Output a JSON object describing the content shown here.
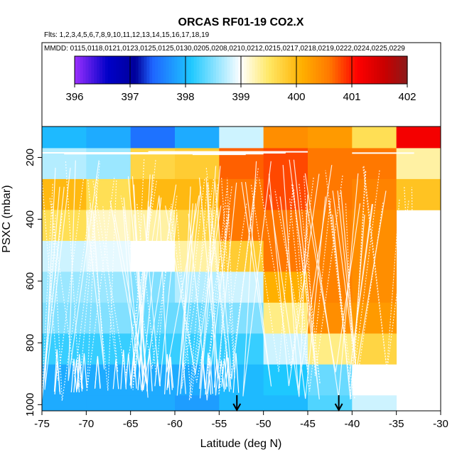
{
  "chart_data": {
    "type": "heatmap",
    "title": "ORCAS RF01-19 CO2.X",
    "flights_label": "Flts: 1,2,3,4,5,6,7,8,9,10,11,12,13,14,15,16,17,18,19",
    "mmdd_label": "MMDD: 0115,0118,0121,0123,0125,0125,0130,0205,0208,0210,0212,0215,0217,0218,0219,0222,0224,0225,0229",
    "xlabel": "Latitude (deg N)",
    "ylabel": "PSXC (mbar)",
    "xlim": [
      -75,
      -30
    ],
    "ylim": [
      1020,
      100
    ],
    "x_ticks": [
      -75,
      -70,
      -65,
      -60,
      -55,
      -50,
      -45,
      -40,
      -35,
      -30
    ],
    "y_ticks": [
      200,
      400,
      600,
      800,
      1000
    ],
    "colorbar": {
      "min": 396,
      "max": 402,
      "ticks": [
        396,
        397,
        398,
        399,
        400,
        401,
        402
      ],
      "stops": [
        {
          "v": 396.0,
          "c": "#9b30ff"
        },
        {
          "v": 396.6,
          "c": "#0000c8"
        },
        {
          "v": 397.1,
          "c": "#00009a"
        },
        {
          "v": 397.4,
          "c": "#1e64ff"
        },
        {
          "v": 398.1,
          "c": "#1ec8ff"
        },
        {
          "v": 399.0,
          "c": "#ffffff"
        },
        {
          "v": 399.5,
          "c": "#ffe866"
        },
        {
          "v": 400.1,
          "c": "#ffb000"
        },
        {
          "v": 400.6,
          "c": "#ff7800"
        },
        {
          "v": 401.1,
          "c": "#ff0000"
        },
        {
          "v": 401.6,
          "c": "#c80000"
        },
        {
          "v": 402.0,
          "c": "#8b1a1a"
        }
      ]
    },
    "x_bins": [
      -75,
      -70,
      -65,
      -60,
      -55,
      -50,
      -45,
      -40,
      -35,
      -30
    ],
    "y_bins": [
      100,
      170,
      270,
      370,
      470,
      570,
      670,
      770,
      870,
      970,
      1020
    ],
    "cells": [
      [
        398.0,
        397.9,
        397.5,
        397.9,
        398.8,
        400.4,
        400.3,
        399.6,
        401.2
      ],
      [
        398.7,
        398.6,
        399.7,
        399.8,
        400.7,
        400.8,
        400.6,
        400.6,
        399.3
      ],
      [
        400.0,
        399.6,
        400.0,
        400.0,
        400.6,
        400.8,
        400.6,
        400.5,
        399.9
      ],
      [
        399.6,
        399.2,
        399.3,
        399.7,
        400.6,
        400.6,
        400.5,
        400.4,
        null
      ],
      [
        398.8,
        398.9,
        399.0,
        399.3,
        399.8,
        400.6,
        400.5,
        400.4,
        null
      ],
      [
        398.6,
        398.6,
        398.5,
        398.7,
        398.8,
        400.1,
        400.5,
        400.4,
        null
      ],
      [
        398.5,
        398.5,
        398.4,
        398.4,
        398.5,
        399.4,
        400.4,
        400.3,
        null
      ],
      [
        398.2,
        398.2,
        398.2,
        398.2,
        398.2,
        398.8,
        399.4,
        399.7,
        null
      ],
      [
        397.9,
        397.9,
        397.9,
        397.9,
        398.0,
        398.1,
        398.4,
        399.0,
        null
      ],
      [
        397.9,
        397.9,
        397.9,
        397.8,
        398.0,
        398.0,
        398.3,
        398.8,
        null
      ]
    ],
    "markers": [
      {
        "lat": -53,
        "label": "arrow"
      },
      {
        "lat": -41.5,
        "label": "arrow"
      }
    ]
  }
}
